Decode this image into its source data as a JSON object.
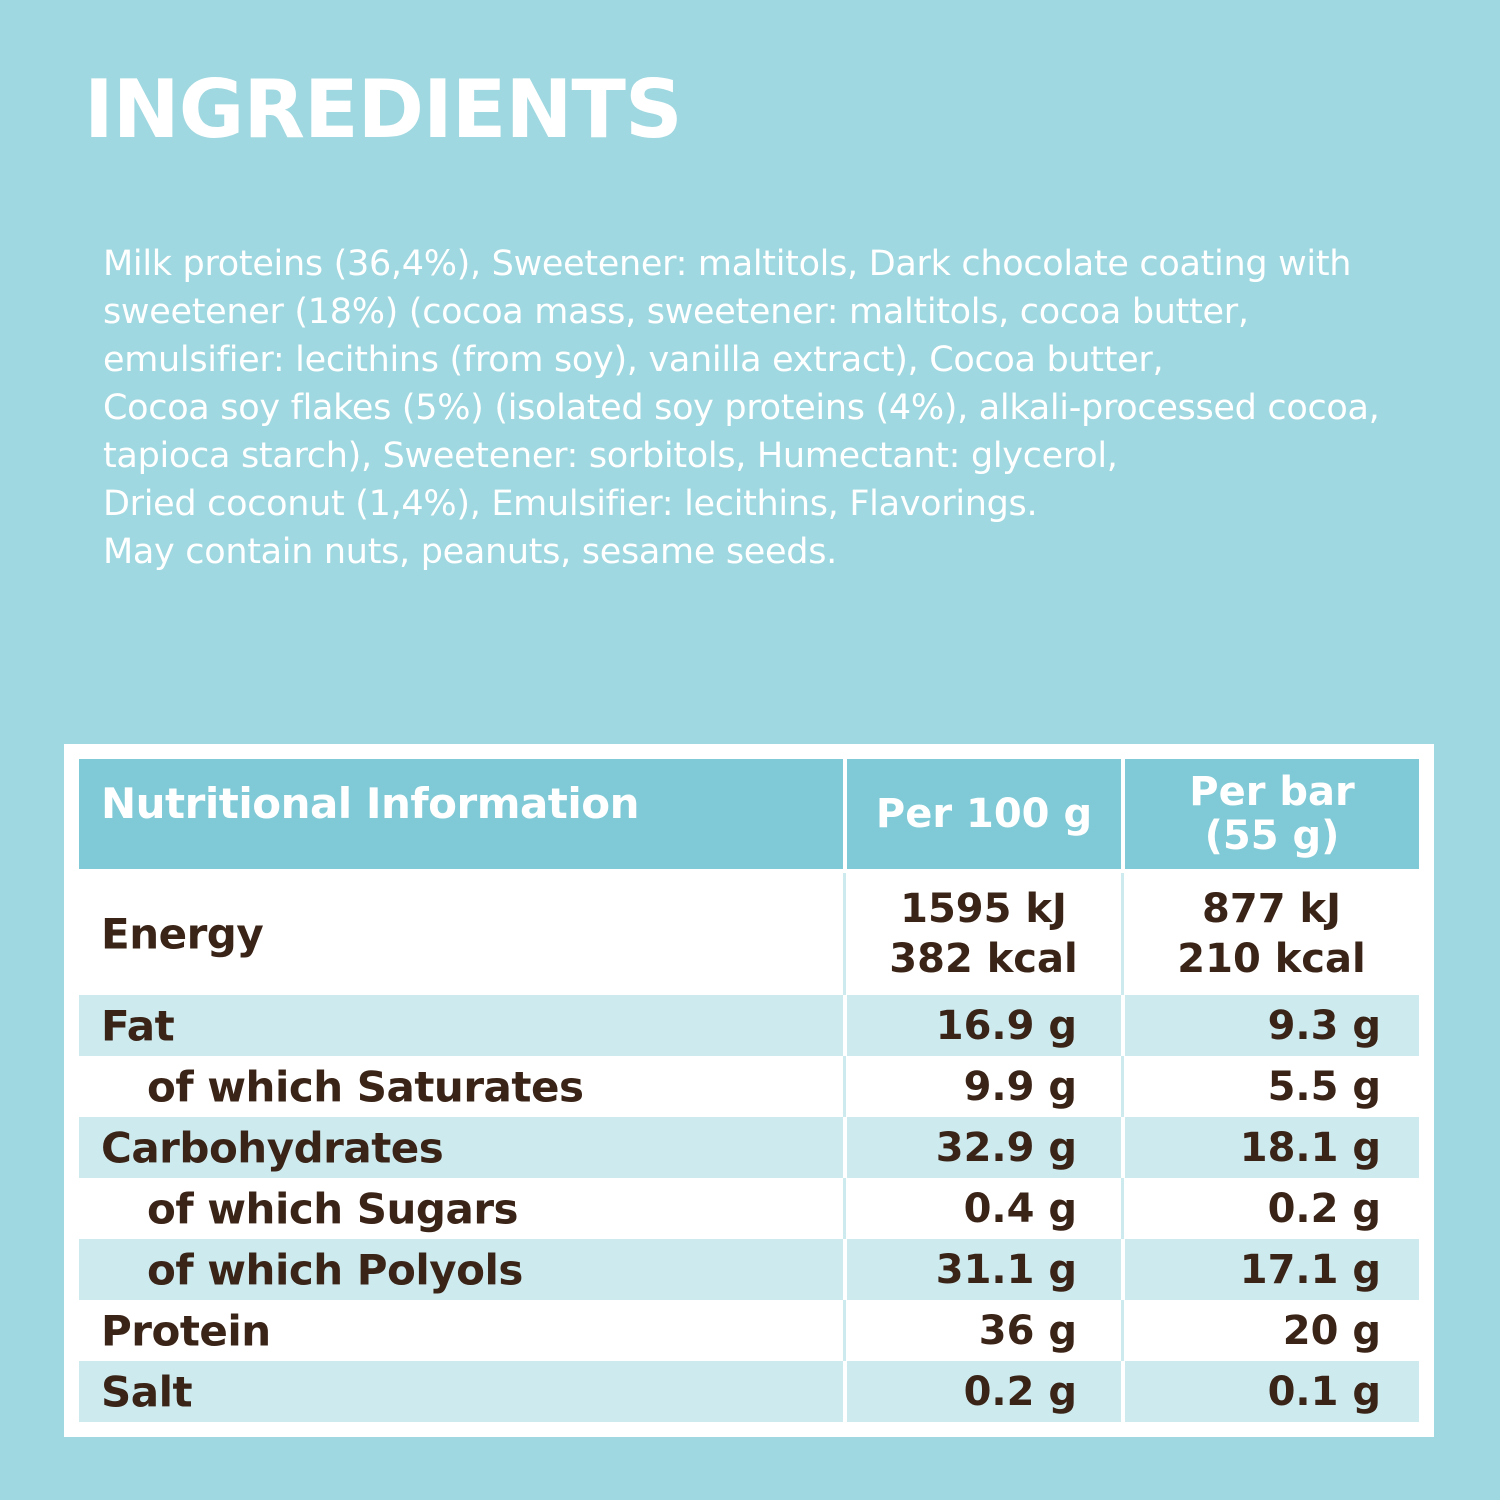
{
  "title": "INGREDIENTS",
  "ingredients_lines": [
    "Milk proteins (36,4%), Sweetener: maltitols, Dark chocolate coating with",
    "sweetener (18%) (cocoa mass, sweetener: maltitols, cocoa butter,",
    "emulsifier: lecithins (from soy), vanilla extract), Cocoa butter,",
    "Cocoa soy flakes (5%) (isolated soy proteins (4%), alkali-processed cocoa,",
    "tapioca starch), Sweetener: sorbitols, Humectant: glycerol,",
    "Dried coconut (1,4%), Emulsifier: lecithins, Flavorings.",
    "May contain nuts, peanuts, sesame seeds."
  ],
  "nutrition": {
    "header": {
      "label": "Nutritional Information",
      "per100": "Per 100 g",
      "perbar_line1": "Per bar",
      "perbar_line2": "(55 g)"
    },
    "energy": {
      "label": "Energy",
      "per100_kj": "1595 kJ",
      "per100_kcal": "382 kcal",
      "perbar_kj": "877 kJ",
      "perbar_kcal": "210 kcal"
    },
    "rows": [
      {
        "label": "Fat",
        "per100": "16.9 g",
        "perbar": "9.3 g"
      },
      {
        "label": "of which Saturates",
        "per100": "9.9 g",
        "perbar": "5.5 g"
      },
      {
        "label": "Carbohydrates",
        "per100": "32.9 g",
        "perbar": "18.1 g"
      },
      {
        "label": "of which Sugars",
        "per100": "0.4 g",
        "perbar": "0.2 g"
      },
      {
        "label": "of which Polyols",
        "per100": "31.1 g",
        "perbar": "17.1 g"
      },
      {
        "label": "Protein",
        "per100": "36 g",
        "perbar": "20 g"
      },
      {
        "label": "Salt",
        "per100": "0.2 g",
        "perbar": "0.1 g"
      }
    ]
  },
  "colors": {
    "background": "#9fd8e0",
    "header": "#7fcad6",
    "row_shade": "#cdebef",
    "text_dark": "#3a2418"
  }
}
